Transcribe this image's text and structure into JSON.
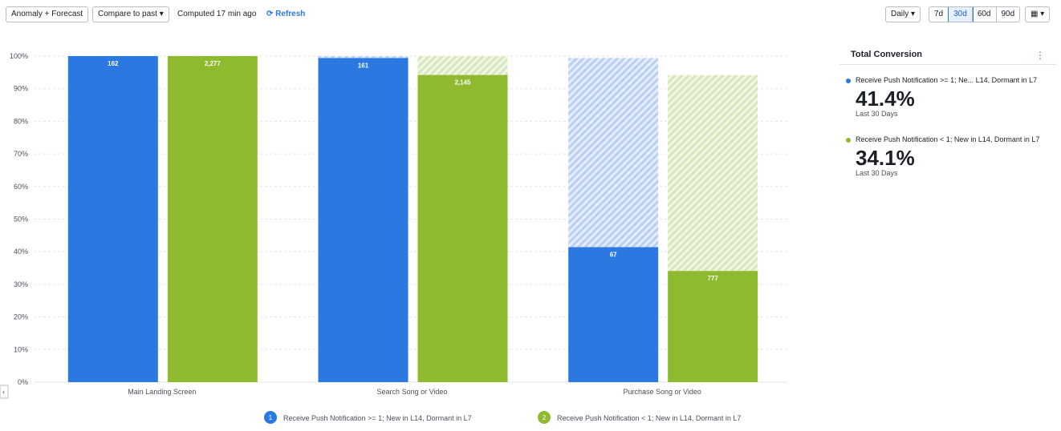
{
  "toolbar": {
    "mode": "Anomaly + Forecast",
    "compare": "Compare to past",
    "computed": "Computed 17 min ago",
    "refresh": "Refresh",
    "interval": "Daily",
    "ranges": [
      "7d",
      "30d",
      "60d",
      "90d"
    ],
    "active_range": 1
  },
  "chart_data": {
    "type": "funnel-bar",
    "categories": [
      "Main Landing Screen",
      "Search Song or Video",
      "Purchase Song or Video"
    ],
    "series": [
      {
        "name": "Receive Push Notification >= 1; New in L14, Dormant in L7",
        "marker": "1",
        "color": "#2b78e0",
        "values": [
          100,
          99.4,
          41.4
        ],
        "counts": [
          162,
          161,
          67
        ]
      },
      {
        "name": "Receive Push Notification < 1; New in L14, Dormant in L7",
        "marker": "2",
        "color": "#8fba2f",
        "values": [
          100,
          94.2,
          34.1
        ],
        "counts": [
          2277,
          2145,
          777
        ],
        "count_labels": [
          "2,277",
          "2,145",
          "777"
        ]
      }
    ],
    "ylim": [
      0,
      100
    ],
    "yticks": [
      {
        "value": 0,
        "label": "0%"
      },
      {
        "value": 10,
        "label": "10%"
      },
      {
        "value": 20,
        "label": "20%"
      },
      {
        "value": 30,
        "label": "30%"
      },
      {
        "value": 40,
        "label": "40%"
      },
      {
        "value": 50,
        "label": "50%"
      },
      {
        "value": 60,
        "label": "60%"
      },
      {
        "value": 70,
        "label": "70%"
      },
      {
        "value": 80,
        "label": "80%"
      },
      {
        "value": 90,
        "label": "90%"
      },
      {
        "value": 100,
        "label": "100%"
      }
    ],
    "grid": true
  },
  "summary": {
    "title": "Total Conversion",
    "items": [
      {
        "label": "Receive Push Notification >= 1; Ne...  L14, Dormant in L7",
        "value": "41.4%",
        "period": "Last 30 Days"
      },
      {
        "label": "Receive Push Notification < 1; New in L14, Dormant in L7",
        "value": "34.1%",
        "period": "Last 30 Days"
      }
    ]
  }
}
